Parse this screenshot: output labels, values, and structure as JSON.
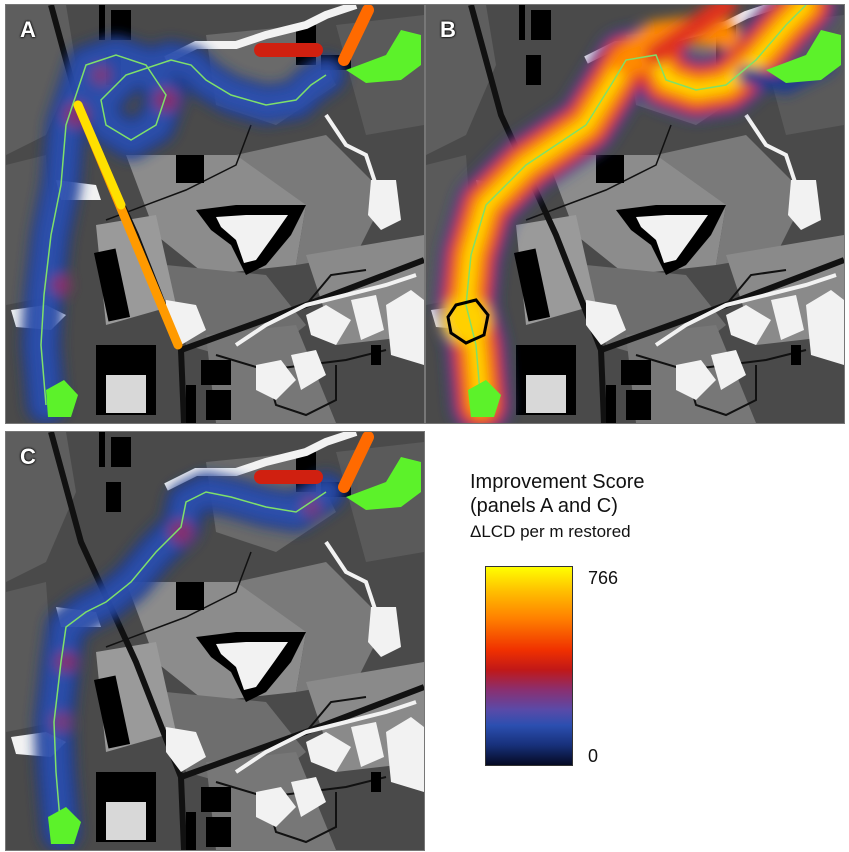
{
  "panels": [
    {
      "id": "A",
      "label": "A"
    },
    {
      "id": "B",
      "label": "B"
    },
    {
      "id": "C",
      "label": "C"
    }
  ],
  "legend": {
    "title_line1": "Improvement Score",
    "title_line2": "(panels A and C)",
    "unit": "ΔLCD per m restored",
    "max_label": "766",
    "min_label": "0",
    "range": [
      0,
      766
    ],
    "colors": [
      "#050a24",
      "#17307a",
      "#2b4fb0",
      "#8a2f70",
      "#c01818",
      "#f03000",
      "#ff8000",
      "#ffc000",
      "#ffff00"
    ]
  },
  "map_colors": {
    "background": "#4a4a4a",
    "fields": "#8c8c8c",
    "buildings": "#000000",
    "water": "#f2f2f2",
    "habitat_patch": "#5cf22a",
    "path": "#7fe06a"
  }
}
